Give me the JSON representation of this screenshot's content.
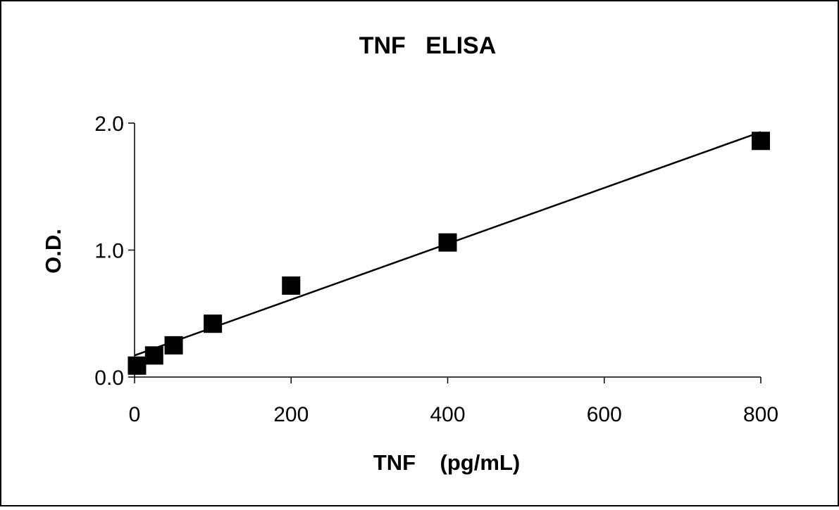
{
  "chart_data": {
    "type": "scatter",
    "title": "TNF   ELISA",
    "xlabel": "TNF    (pg/mL)",
    "ylabel": "O.D.",
    "xlim": [
      0,
      800
    ],
    "ylim": [
      0,
      2.0
    ],
    "xticks": [
      0,
      200,
      400,
      600,
      800
    ],
    "xtick_labels": [
      "0",
      "200",
      "400",
      "600",
      "800"
    ],
    "yticks": [
      0,
      1.0,
      2.0
    ],
    "ytick_labels": [
      "0.0",
      "1.0",
      "2.0"
    ],
    "grid": false,
    "legend": "none",
    "series": [
      {
        "marker": "square",
        "color": "#000000",
        "x": [
          3.125,
          25,
          50,
          100,
          200,
          400,
          800
        ],
        "y": [
          0.09,
          0.17,
          0.25,
          0.42,
          0.72,
          1.06,
          1.86
        ]
      }
    ],
    "fit_line": {
      "type": "linear",
      "color": "#000000",
      "x": [
        0,
        800
      ],
      "y": [
        0.17,
        1.93
      ]
    }
  }
}
